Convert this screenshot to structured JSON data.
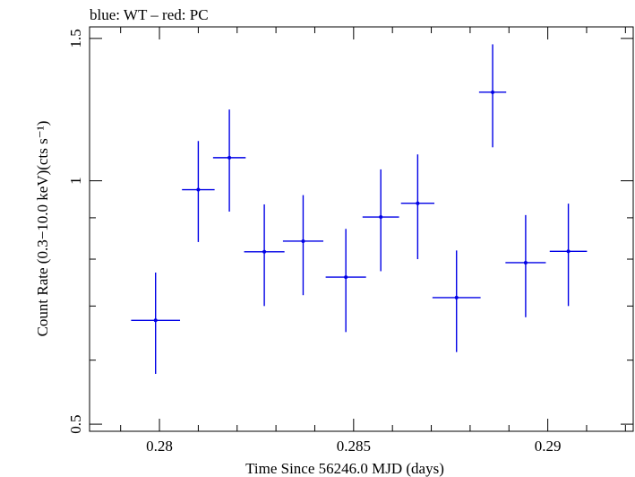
{
  "chart_data": {
    "type": "scatter",
    "title": "blue: WT – red: PC",
    "xlabel": "Time Since 56246.0 MJD (days)",
    "ylabel": "Count Rate (0.3−10.0 keV)(cts s⁻¹)",
    "xlim": [
      0.2782,
      0.2922
    ],
    "ylim": [
      0.49,
      1.55
    ],
    "ylog": true,
    "xticks": [
      {
        "value": 0.28,
        "label": "0.28"
      },
      {
        "value": 0.285,
        "label": "0.285"
      },
      {
        "value": 0.29,
        "label": "0.29"
      }
    ],
    "yticks": [
      {
        "value": 0.5,
        "label": "0.5"
      },
      {
        "value": 1.0,
        "label": "1"
      },
      {
        "value": 1.5,
        "label": "1.5"
      }
    ],
    "grid": false,
    "series": [
      {
        "name": "WT",
        "color": "#0000e6",
        "points": [
          {
            "x": 0.2799,
            "xerr": 0.00063,
            "y": 0.672,
            "ylo": 0.577,
            "yhi": 0.77
          },
          {
            "x": 0.281,
            "xerr": 0.00042,
            "y": 0.975,
            "ylo": 0.84,
            "yhi": 1.12
          },
          {
            "x": 0.2818,
            "xerr": 0.00042,
            "y": 1.068,
            "ylo": 0.916,
            "yhi": 1.225
          },
          {
            "x": 0.2827,
            "xerr": 0.00052,
            "y": 0.817,
            "ylo": 0.7,
            "yhi": 0.935
          },
          {
            "x": 0.2837,
            "xerr": 0.00052,
            "y": 0.842,
            "ylo": 0.722,
            "yhi": 0.96
          },
          {
            "x": 0.2848,
            "xerr": 0.00052,
            "y": 0.76,
            "ylo": 0.65,
            "yhi": 0.872
          },
          {
            "x": 0.2857,
            "xerr": 0.00047,
            "y": 0.902,
            "ylo": 0.773,
            "yhi": 1.033
          },
          {
            "x": 0.28665,
            "xerr": 0.00043,
            "y": 0.938,
            "ylo": 0.8,
            "yhi": 1.078
          },
          {
            "x": 0.28765,
            "xerr": 0.00062,
            "y": 0.717,
            "ylo": 0.614,
            "yhi": 0.82
          },
          {
            "x": 0.28858,
            "xerr": 0.00035,
            "y": 1.287,
            "ylo": 1.1,
            "yhi": 1.475
          },
          {
            "x": 0.28943,
            "xerr": 0.00052,
            "y": 0.792,
            "ylo": 0.678,
            "yhi": 0.907
          },
          {
            "x": 0.29053,
            "xerr": 0.00048,
            "y": 0.818,
            "ylo": 0.7,
            "yhi": 0.937
          }
        ]
      }
    ]
  }
}
